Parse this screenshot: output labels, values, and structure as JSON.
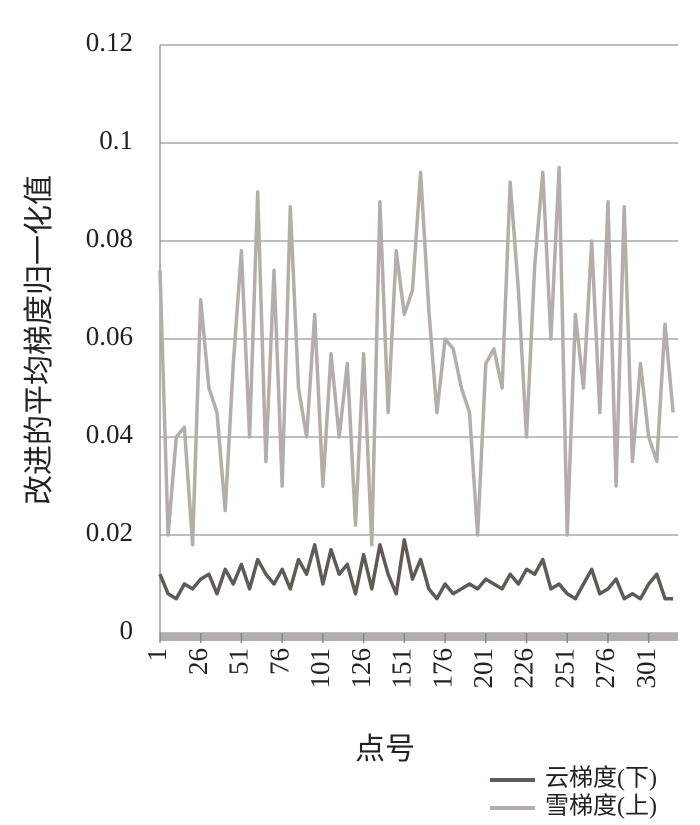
{
  "chart_data": {
    "type": "line",
    "y_label": "改进的平均梯度归一化值",
    "x_label": "点号",
    "x": [
      1,
      6,
      11,
      16,
      21,
      26,
      31,
      36,
      41,
      46,
      51,
      56,
      61,
      66,
      71,
      76,
      81,
      86,
      91,
      96,
      101,
      106,
      111,
      116,
      121,
      126,
      131,
      136,
      141,
      146,
      151,
      156,
      161,
      166,
      171,
      176,
      181,
      186,
      191,
      196,
      201,
      206,
      211,
      216,
      221,
      226,
      231,
      236,
      241,
      246,
      251,
      256,
      261,
      266,
      271,
      276,
      281,
      286,
      291,
      296,
      301,
      306,
      311,
      316
    ],
    "series": [
      {
        "name": "云梯度(下)",
        "color": "#5f5a58",
        "values": [
          0.012,
          0.008,
          0.007,
          0.01,
          0.009,
          0.011,
          0.012,
          0.008,
          0.013,
          0.01,
          0.014,
          0.009,
          0.015,
          0.012,
          0.01,
          0.013,
          0.009,
          0.015,
          0.012,
          0.018,
          0.01,
          0.017,
          0.012,
          0.014,
          0.008,
          0.016,
          0.009,
          0.018,
          0.012,
          0.008,
          0.019,
          0.011,
          0.015,
          0.009,
          0.007,
          0.01,
          0.008,
          0.009,
          0.01,
          0.009,
          0.011,
          0.01,
          0.009,
          0.012,
          0.01,
          0.013,
          0.012,
          0.015,
          0.009,
          0.01,
          0.008,
          0.007,
          0.01,
          0.013,
          0.008,
          0.009,
          0.011,
          0.007,
          0.008,
          0.007,
          0.01,
          0.012,
          0.007,
          0.007
        ]
      },
      {
        "name": "雪梯度(上)",
        "color": "#b3aeac",
        "values": [
          0.074,
          0.02,
          0.04,
          0.042,
          0.018,
          0.068,
          0.05,
          0.045,
          0.025,
          0.055,
          0.078,
          0.04,
          0.09,
          0.035,
          0.074,
          0.03,
          0.087,
          0.05,
          0.04,
          0.065,
          0.03,
          0.057,
          0.04,
          0.055,
          0.022,
          0.057,
          0.018,
          0.088,
          0.045,
          0.078,
          0.065,
          0.07,
          0.094,
          0.066,
          0.045,
          0.06,
          0.058,
          0.05,
          0.045,
          0.02,
          0.055,
          0.058,
          0.05,
          0.092,
          0.07,
          0.04,
          0.075,
          0.094,
          0.06,
          0.095,
          0.02,
          0.065,
          0.05,
          0.08,
          0.045,
          0.088,
          0.03,
          0.087,
          0.035,
          0.055,
          0.04,
          0.035,
          0.063,
          0.045
        ]
      }
    ],
    "xlim": [
      1,
      319
    ],
    "xticks": [
      1,
      26,
      51,
      76,
      101,
      126,
      151,
      176,
      201,
      226,
      251,
      276,
      301
    ],
    "ylim": [
      0,
      0.12
    ],
    "yticks": [
      0,
      0.02,
      0.04,
      0.06,
      0.08,
      0.1,
      0.12
    ],
    "grid": true
  }
}
